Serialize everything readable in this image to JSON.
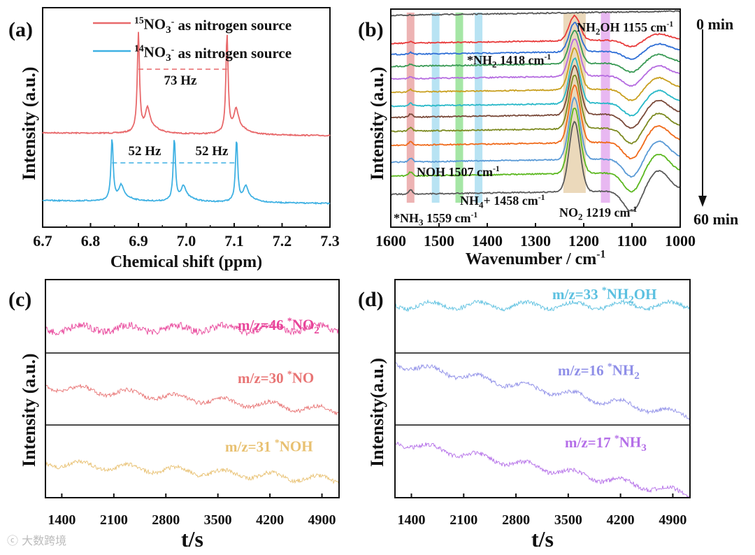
{
  "chart_data": [
    {
      "panel": "(a)",
      "type": "line",
      "xlabel": "Chemical shift (ppm)",
      "ylabel": "Intensity (a.u.)",
      "xlim": [
        6.7,
        7.3
      ],
      "xticks": [
        "6.7",
        "6.8",
        "6.9",
        "7.0",
        "7.1",
        "7.2",
        "7.3"
      ],
      "series": [
        {
          "name_sup": "15",
          "name_main": "NO",
          "name_sub": "3",
          "name_sup2": "-",
          "name_rest": " as nitrogen source",
          "color": "#e8696b",
          "peaks": [
            6.9,
            7.085
          ],
          "splitting_label": "73 Hz"
        },
        {
          "name_sup": "14",
          "name_main": "NO",
          "name_sub": "3",
          "name_sup2": "-",
          "name_rest": " as nitrogen source",
          "color": "#3fb1e3",
          "peaks": [
            6.845,
            6.975,
            7.105
          ],
          "splitting_label": "52 Hz",
          "splitting_label2": "52 Hz"
        }
      ]
    },
    {
      "panel": "(b)",
      "type": "line",
      "xlabel": "Wavenumber / cm",
      "xlabel_sup": "-1",
      "ylabel": "Intensity (a.u.)",
      "xlim": [
        1600,
        1000
      ],
      "xticks": [
        "1600",
        "1500",
        "1400",
        "1300",
        "1200",
        "1100",
        "1000"
      ],
      "time_start": "0 min",
      "time_end": "60 min",
      "colors": [
        "#555555",
        "#e83a3a",
        "#2f6fd6",
        "#3a9a55",
        "#b56be0",
        "#c9a020",
        "#27b8c8",
        "#7a4a3a",
        "#7c8a20",
        "#f06a1a",
        "#5a9ad6",
        "#5cb820",
        "#5a5a5a"
      ],
      "bands": [
        {
          "wavenumber": 1559,
          "label": "*NH",
          "sub": "3",
          "rest": " 1559 cm",
          "sup": "-1",
          "color": "#e9a0a0"
        },
        {
          "wavenumber": 1507,
          "label": "NOH 1507 cm",
          "sub": "",
          "rest": "",
          "sup": "-1",
          "color": "#a6dcf0"
        },
        {
          "wavenumber": 1458,
          "label": "NH",
          "sub": "4",
          "rest": "+ 1458 cm",
          "sup": "-1",
          "color": "#8fe08f"
        },
        {
          "wavenumber": 1418,
          "label": "*NH",
          "sub": "2",
          "rest": " 1418 cm",
          "sup": "-1",
          "color": "#a6dcf0"
        },
        {
          "wavenumber": 1219,
          "label": "NO",
          "sub": "2",
          "rest": " 1219 cm",
          "sup": "-1",
          "color": "#e6cfaa"
        },
        {
          "wavenumber": 1155,
          "label": "NH",
          "sub": "2",
          "rest": "OH 1155 cm",
          "sup": "-1",
          "color": "#e2a6ee"
        }
      ]
    },
    {
      "panel": "(c)",
      "type": "line",
      "xlabel": "t/s",
      "ylabel": "Intensity (a.u.)",
      "xlim": [
        1180,
        5130
      ],
      "xticks": [
        "1400",
        "2100",
        "2800",
        "3500",
        "4200",
        "4900"
      ],
      "series": [
        {
          "label": "m/z=46 ",
          "star": "*",
          "species": "NO",
          "sub": "2",
          "color": "#e8449a",
          "trend": [
            0,
            0
          ]
        },
        {
          "label": "m/z=30 ",
          "star": "*",
          "species": "NO",
          "sub": "",
          "color": "#e87474",
          "trend": [
            0,
            -0.6
          ]
        },
        {
          "label": "m/z=31 ",
          "star": "*",
          "species": "NOH",
          "sub": "",
          "color": "#e8c070",
          "trend": [
            0,
            -0.3
          ]
        }
      ]
    },
    {
      "panel": "(d)",
      "type": "line",
      "xlabel": "t/s",
      "ylabel": "Intensity(a.u.)",
      "xlim": [
        1180,
        5130
      ],
      "xticks": [
        "1400",
        "2100",
        "2800",
        "3500",
        "4200",
        "4900"
      ],
      "series": [
        {
          "label": "m/z=33 ",
          "star": "*",
          "species": "NH",
          "sub": "2",
          "rest": "OH",
          "color": "#5bc0e0",
          "trend": [
            0,
            0
          ]
        },
        {
          "label": "m/z=16 ",
          "star": "*",
          "species": "NH",
          "sub": "2",
          "rest": "",
          "color": "#8f8fe8",
          "trend": [
            0,
            -1
          ]
        },
        {
          "label": "m/z=17 ",
          "star": "*",
          "species": "NH",
          "sub": "3",
          "rest": "",
          "color": "#b46ee8",
          "trend": [
            0,
            -1
          ]
        }
      ]
    }
  ],
  "watermark": "大数跨境"
}
